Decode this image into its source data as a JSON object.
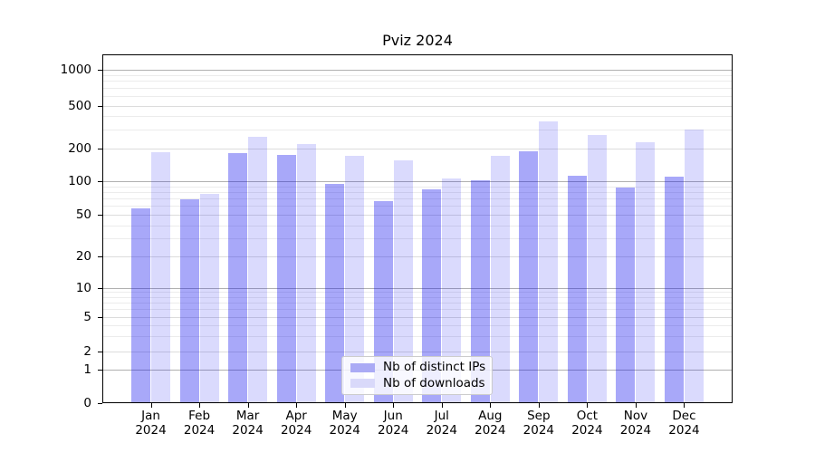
{
  "chart_data": {
    "type": "bar",
    "title": "Pviz 2024",
    "categories": [
      [
        "Jan",
        "2024"
      ],
      [
        "Feb",
        "2024"
      ],
      [
        "Mar",
        "2024"
      ],
      [
        "Apr",
        "2024"
      ],
      [
        "May",
        "2024"
      ],
      [
        "Jun",
        "2024"
      ],
      [
        "Jul",
        "2024"
      ],
      [
        "Aug",
        "2024"
      ],
      [
        "Sep",
        "2024"
      ],
      [
        "Oct",
        "2024"
      ],
      [
        "Nov",
        "2024"
      ],
      [
        "Dec",
        "2024"
      ]
    ],
    "series": [
      {
        "name": "Nb of distinct IPs",
        "values": [
          57,
          69,
          182,
          175,
          95,
          67,
          84,
          102,
          190,
          112,
          88,
          110
        ],
        "color": "#aaaaf5",
        "fill": "rgba(0,0,238,0.34)"
      },
      {
        "name": "Nb of downloads",
        "values": [
          186,
          77,
          258,
          222,
          171,
          155,
          105,
          170,
          357,
          270,
          230,
          300
        ],
        "color": "#d9d9fa",
        "fill": "rgba(0,0,238,0.145)"
      }
    ],
    "yscale": "symlog",
    "yticks": [
      0,
      1,
      2,
      5,
      10,
      20,
      50,
      100,
      200,
      500,
      1000
    ],
    "ylim": [
      0,
      1300
    ],
    "grid": "both",
    "legend_position": "lower center",
    "colors": {
      "grid_major": "#b0b0b0",
      "grid_mid": "#dcdcdc",
      "grid_minor": "#ececec",
      "spine": "#000000",
      "background": "#ffffff"
    }
  }
}
